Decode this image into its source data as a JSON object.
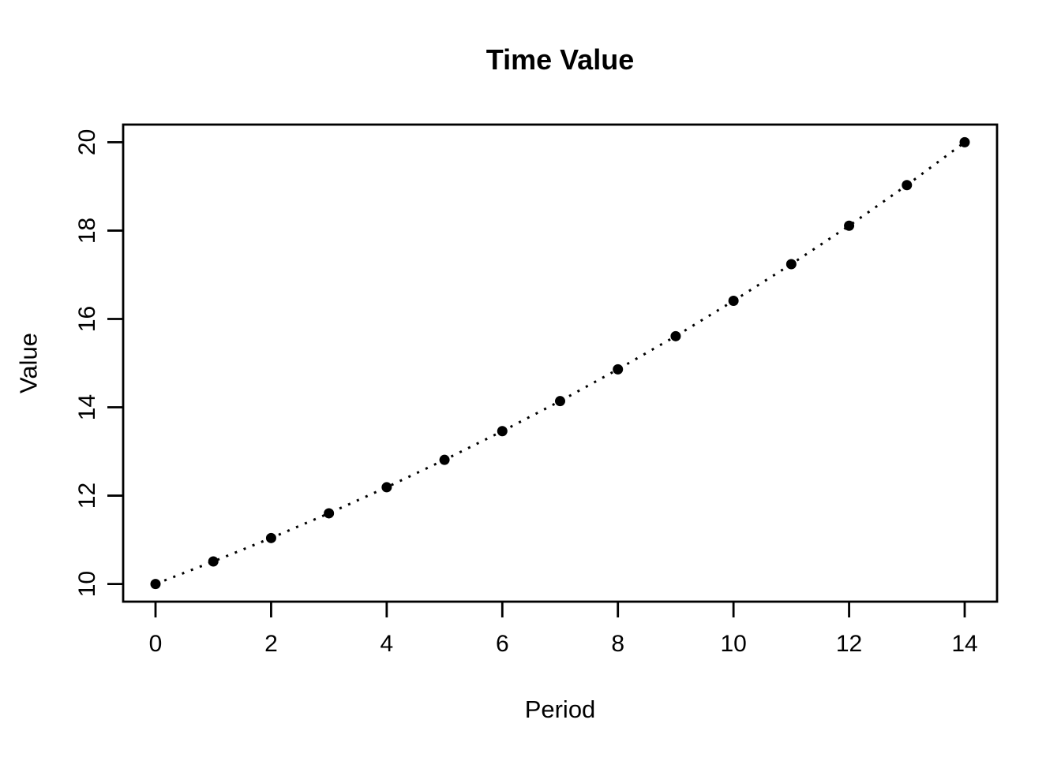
{
  "chart_data": {
    "type": "scatter",
    "title": "Time Value",
    "xlabel": "Period",
    "ylabel": "Value",
    "x": [
      0,
      1,
      2,
      3,
      4,
      5,
      6,
      7,
      8,
      9,
      10,
      11,
      12,
      13,
      14
    ],
    "y": [
      10,
      10.51,
      11.04,
      11.6,
      12.19,
      12.81,
      13.46,
      14.14,
      14.86,
      15.61,
      16.41,
      17.24,
      18.11,
      19.03,
      20
    ],
    "x_ticks": [
      0,
      2,
      4,
      6,
      8,
      10,
      12,
      14
    ],
    "x_tick_labels": [
      "0",
      "2",
      "4",
      "6",
      "8",
      "10",
      "12",
      "14"
    ],
    "y_ticks": [
      10,
      12,
      14,
      16,
      18,
      20
    ],
    "y_tick_labels": [
      "10",
      "12",
      "14",
      "16",
      "18",
      "20"
    ],
    "xlim": [
      -0.56,
      14.56
    ],
    "ylim": [
      9.6,
      20.4
    ],
    "line_style": "dotted",
    "marker": "filled-circle",
    "color": "#000000",
    "background": "#ffffff",
    "grid": false,
    "legend": "none"
  }
}
